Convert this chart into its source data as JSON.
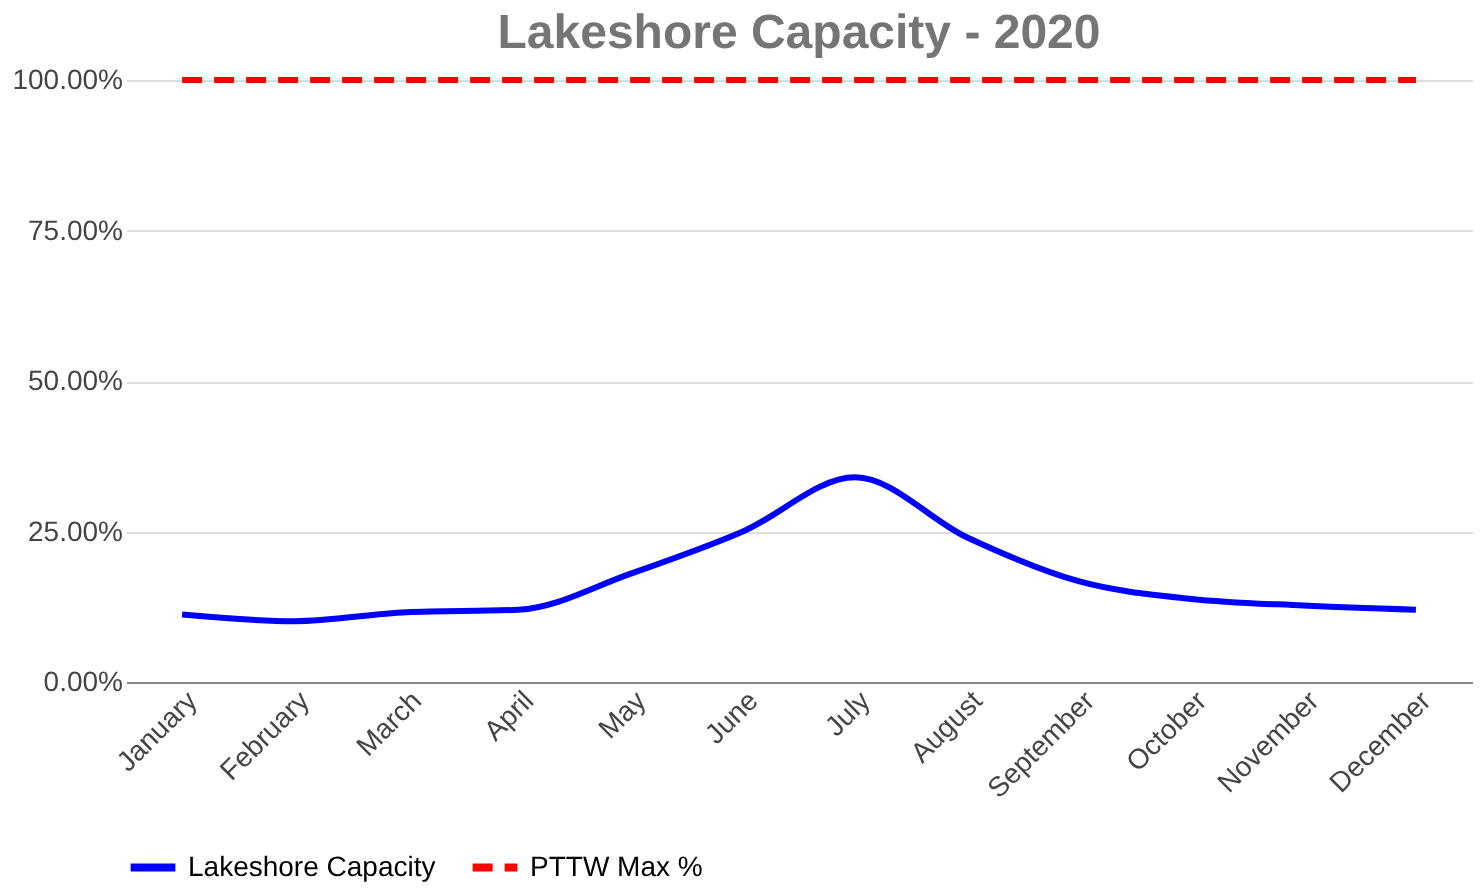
{
  "chart_data": {
    "type": "line",
    "title": "Lakeshore Capacity - 2020",
    "categories": [
      "January",
      "February",
      "March",
      "April",
      "May",
      "June",
      "July",
      "August",
      "September",
      "October",
      "November",
      "December"
    ],
    "series": [
      {
        "name": "Lakeshore Capacity",
        "color": "#0000ff",
        "line_style": "solid",
        "values": [
          11.2,
          10.1,
          11.6,
          12,
          18,
          25,
          34,
          24,
          16.7,
          13.8,
          12.7,
          12
        ]
      },
      {
        "name": "PTTW Max %",
        "color": "#ff0000",
        "line_style": "dashed",
        "values": [
          100,
          100,
          100,
          100,
          100,
          100,
          100,
          100,
          100,
          100,
          100,
          100
        ]
      }
    ],
    "ylim": [
      0,
      100
    ],
    "yticks": [
      {
        "value": 0,
        "label": "0.00%"
      },
      {
        "value": 25,
        "label": "25.00%"
      },
      {
        "value": 50,
        "label": "50.00%"
      },
      {
        "value": 75,
        "label": "75.00%"
      },
      {
        "value": 100,
        "label": "100.00%"
      }
    ],
    "grid": "y",
    "legend": "bottom",
    "marker": "none"
  }
}
